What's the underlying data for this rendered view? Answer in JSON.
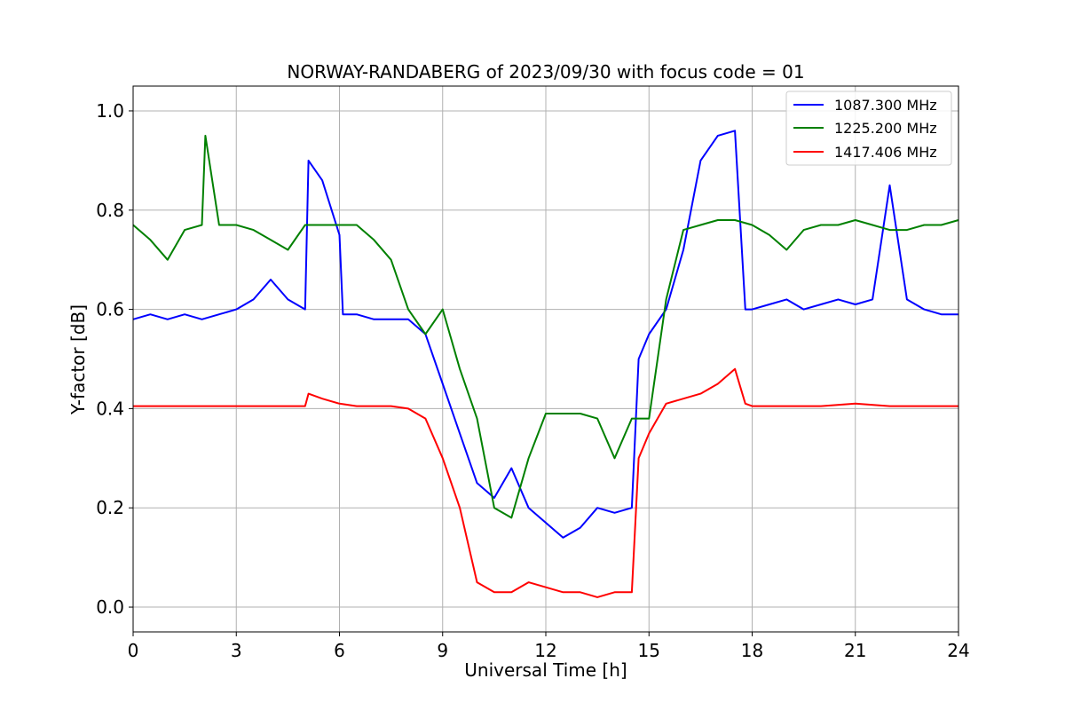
{
  "chart_data": {
    "type": "line",
    "title": "NORWAY-RANDABERG of 2023/09/30 with focus code = 01",
    "xlabel": "Universal Time [h]",
    "ylabel": "Y-factor [dB]",
    "xlim": [
      0,
      24
    ],
    "ylim": [
      -0.05,
      1.05
    ],
    "xticks": [
      0,
      3,
      6,
      9,
      12,
      15,
      18,
      21,
      24
    ],
    "xtick_labels": [
      "0",
      "3",
      "6",
      "9",
      "12",
      "15",
      "18",
      "21",
      "24"
    ],
    "yticks": [
      0.0,
      0.2,
      0.4,
      0.6,
      0.8,
      1.0
    ],
    "ytick_labels": [
      "0.0",
      "0.2",
      "0.4",
      "0.6",
      "0.8",
      "1.0"
    ],
    "grid": true,
    "legend_position": "top-right",
    "series": [
      {
        "name": "1087.300 MHz",
        "color": "#0000ff",
        "x": [
          0,
          0.5,
          1,
          1.5,
          2,
          2.5,
          3,
          3.5,
          4,
          4.5,
          5,
          5.1,
          5.5,
          6,
          6.1,
          6.5,
          7,
          7.5,
          8,
          8.5,
          9,
          9.5,
          10,
          10.5,
          11,
          11.5,
          12,
          12.5,
          13,
          13.5,
          14,
          14.5,
          14.7,
          15,
          15.5,
          16,
          16.5,
          17,
          17.5,
          17.8,
          18,
          18.5,
          19,
          19.5,
          20,
          20.5,
          21,
          21.5,
          22,
          22.5,
          23,
          23.5,
          24
        ],
        "y": [
          0.58,
          0.59,
          0.58,
          0.59,
          0.58,
          0.59,
          0.6,
          0.62,
          0.66,
          0.62,
          0.6,
          0.9,
          0.86,
          0.75,
          0.59,
          0.59,
          0.58,
          0.58,
          0.58,
          0.55,
          0.45,
          0.35,
          0.25,
          0.22,
          0.28,
          0.2,
          0.17,
          0.14,
          0.16,
          0.2,
          0.19,
          0.2,
          0.5,
          0.55,
          0.6,
          0.72,
          0.9,
          0.95,
          0.96,
          0.6,
          0.6,
          0.61,
          0.62,
          0.6,
          0.61,
          0.62,
          0.61,
          0.62,
          0.85,
          0.62,
          0.6,
          0.59,
          0.59
        ]
      },
      {
        "name": "1225.200 MHz",
        "color": "#008000",
        "x": [
          0,
          0.5,
          1,
          1.5,
          2,
          2.1,
          2.5,
          3,
          3.5,
          4,
          4.5,
          5,
          5.5,
          6,
          6.5,
          7,
          7.5,
          8,
          8.5,
          9,
          9.5,
          10,
          10.5,
          11,
          11.5,
          12,
          12.5,
          13,
          13.5,
          14,
          14.5,
          15,
          15.5,
          16,
          16.5,
          17,
          17.5,
          18,
          18.5,
          19,
          19.5,
          20,
          20.5,
          21,
          21.5,
          22,
          22.5,
          23,
          23.5,
          24
        ],
        "y": [
          0.77,
          0.74,
          0.7,
          0.76,
          0.77,
          0.95,
          0.77,
          0.77,
          0.76,
          0.74,
          0.72,
          0.77,
          0.77,
          0.77,
          0.77,
          0.74,
          0.7,
          0.6,
          0.55,
          0.6,
          0.48,
          0.38,
          0.2,
          0.18,
          0.3,
          0.39,
          0.39,
          0.39,
          0.38,
          0.3,
          0.38,
          0.38,
          0.62,
          0.76,
          0.77,
          0.78,
          0.78,
          0.77,
          0.75,
          0.72,
          0.76,
          0.77,
          0.77,
          0.78,
          0.77,
          0.76,
          0.76,
          0.77,
          0.77,
          0.78
        ]
      },
      {
        "name": "1417.406 MHz",
        "color": "#ff0000",
        "x": [
          0,
          1,
          2,
          3,
          4,
          5,
          5.1,
          5.5,
          6,
          6.5,
          7,
          7.5,
          8,
          8.5,
          9,
          9.5,
          10,
          10.5,
          11,
          11.5,
          12,
          12.5,
          13,
          13.5,
          14,
          14.5,
          14.7,
          15,
          15.5,
          16,
          16.5,
          17,
          17.5,
          17.8,
          18,
          19,
          20,
          21,
          22,
          23,
          24
        ],
        "y": [
          0.405,
          0.405,
          0.405,
          0.405,
          0.405,
          0.405,
          0.43,
          0.42,
          0.41,
          0.405,
          0.405,
          0.405,
          0.4,
          0.38,
          0.3,
          0.2,
          0.05,
          0.03,
          0.03,
          0.05,
          0.04,
          0.03,
          0.03,
          0.02,
          0.03,
          0.03,
          0.3,
          0.35,
          0.41,
          0.42,
          0.43,
          0.45,
          0.48,
          0.41,
          0.405,
          0.405,
          0.405,
          0.41,
          0.405,
          0.405,
          0.405
        ]
      }
    ]
  }
}
